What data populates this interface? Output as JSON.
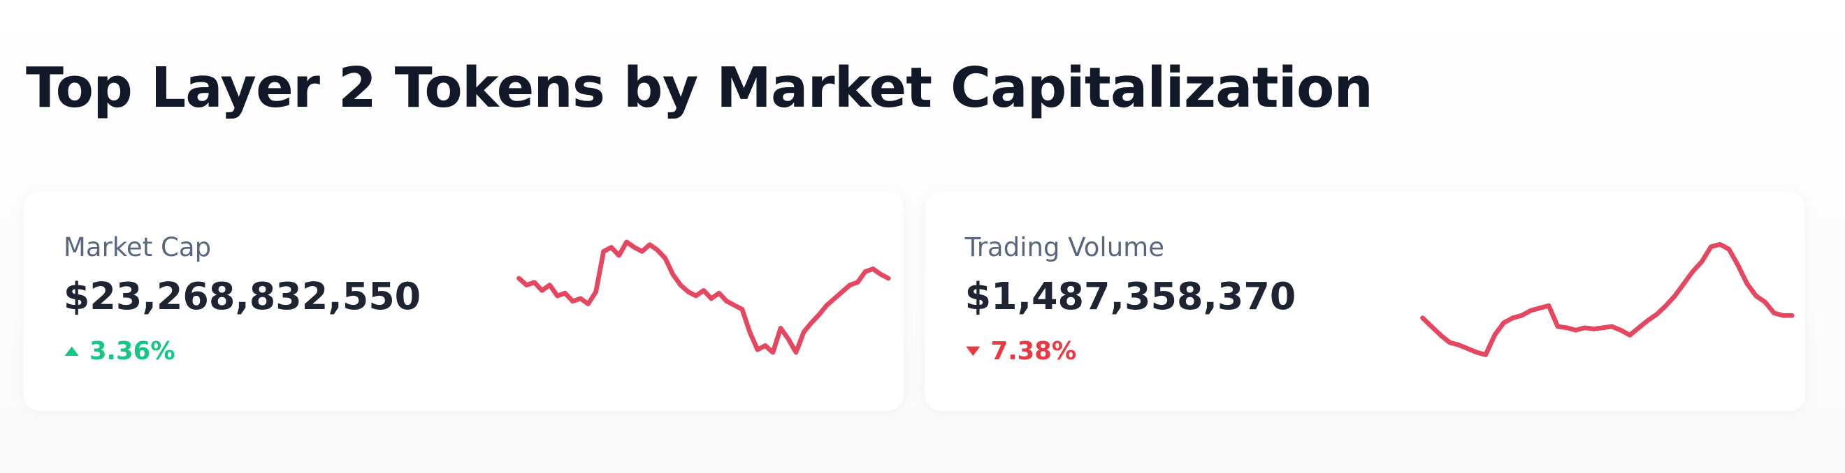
{
  "header": {
    "title": "Top Layer 2 Tokens by Market Capitalization"
  },
  "cards": [
    {
      "label": "Market Cap",
      "value": "$23,268,832,550",
      "change": "3.36%",
      "direction": "up",
      "color": "#e4475f",
      "sparkline": [
        65,
        60,
        62,
        56,
        60,
        52,
        54,
        48,
        50,
        46,
        55,
        85,
        88,
        82,
        92,
        88,
        85,
        90,
        86,
        80,
        68,
        60,
        55,
        52,
        56,
        50,
        54,
        48,
        45,
        42,
        25,
        12,
        15,
        10,
        28,
        20,
        10,
        25,
        32,
        38,
        45,
        50,
        55,
        60,
        62,
        70,
        72,
        68,
        65
      ]
    },
    {
      "label": "Trading Volume",
      "value": "$1,487,358,370",
      "change": "7.38%",
      "direction": "down",
      "color": "#e4475f",
      "sparkline": [
        32,
        25,
        18,
        12,
        10,
        7,
        4,
        2,
        18,
        28,
        32,
        34,
        38,
        40,
        42,
        25,
        24,
        22,
        24,
        23,
        24,
        25,
        22,
        18,
        24,
        30,
        35,
        42,
        50,
        60,
        70,
        78,
        90,
        92,
        88,
        75,
        60,
        50,
        45,
        36,
        34,
        34
      ]
    }
  ]
}
